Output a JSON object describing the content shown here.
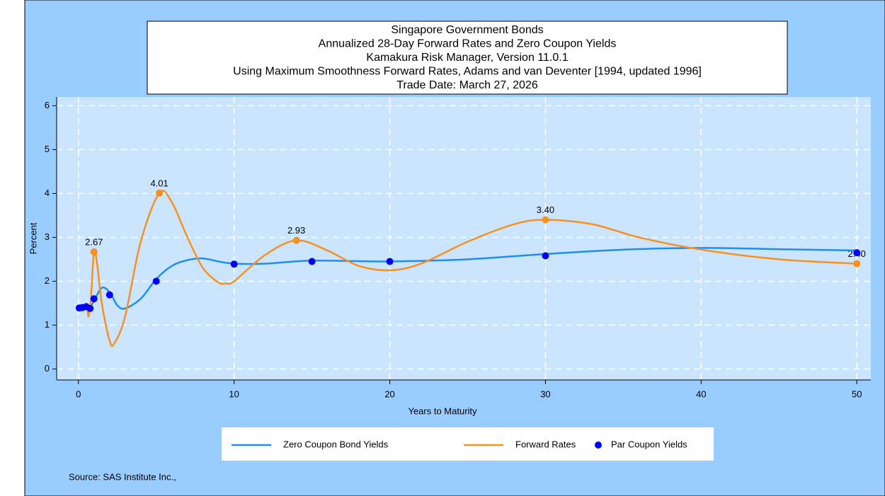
{
  "chart_data": {
    "type": "line",
    "title": [
      "Singapore Government Bonds",
      "Annualized 28-Day Forward Rates and Zero Coupon Yields",
      "Kamakura Risk Manager, Version 11.0.1",
      "Using Maximum Smoothness Forward Rates, Adams and van Deventer [1994, updated 1996]",
      "Trade Date: March 27, 2026"
    ],
    "x_label": "Years to Maturity",
    "y_label": "Percent",
    "source": "Source: SAS Institute Inc.,",
    "xlim": [
      -1.4,
      50.9
    ],
    "ylim": [
      -0.25,
      6.2
    ],
    "xticks": [
      0,
      10,
      20,
      30,
      40,
      50
    ],
    "yticks": [
      0,
      1,
      2,
      3,
      4,
      5,
      6
    ],
    "grid": true,
    "series": [
      {
        "name": "Zero Coupon Bond Yields",
        "type": "line",
        "color": "#1f8ef1",
        "x": [
          0,
          0.5,
          0.75,
          1,
          1.5,
          2,
          2.5,
          3,
          4,
          5,
          6,
          7,
          8,
          9,
          10,
          12,
          15,
          20,
          25,
          30,
          35,
          40,
          45,
          50
        ],
        "values": [
          1.38,
          1.4,
          1.42,
          1.55,
          1.85,
          1.75,
          1.45,
          1.38,
          1.6,
          2.05,
          2.35,
          2.48,
          2.52,
          2.45,
          2.4,
          2.4,
          2.47,
          2.45,
          2.5,
          2.62,
          2.72,
          2.76,
          2.73,
          2.7
        ]
      },
      {
        "name": "Forward Rates",
        "type": "line",
        "color": "#f7901e",
        "x": [
          0,
          0.5,
          0.65,
          0.8,
          1,
          1.2,
          1.5,
          2,
          2.3,
          3,
          4,
          5.2,
          6,
          7,
          8,
          9,
          9.5,
          10,
          12,
          14,
          16,
          18,
          20,
          22,
          25,
          28,
          30,
          33,
          36,
          40,
          45,
          50
        ],
        "values": [
          1.38,
          1.45,
          1.2,
          1.6,
          2.67,
          2.4,
          1.5,
          0.65,
          0.58,
          1.2,
          2.9,
          4.01,
          3.8,
          3.0,
          2.3,
          1.97,
          1.95,
          2.0,
          2.6,
          2.93,
          2.7,
          2.35,
          2.25,
          2.4,
          2.9,
          3.3,
          3.4,
          3.3,
          3.0,
          2.72,
          2.5,
          2.4
        ]
      },
      {
        "name": "Par Coupon Yields",
        "type": "scatter",
        "color": "#0000ff",
        "x": [
          0.05,
          0.25,
          0.5,
          0.75,
          1,
          2,
          5,
          10,
          15,
          20,
          30,
          50
        ],
        "values": [
          1.39,
          1.4,
          1.42,
          1.38,
          1.6,
          1.69,
          2.0,
          2.39,
          2.45,
          2.45,
          2.58,
          2.65
        ]
      }
    ],
    "annotations": {
      "color": "#f7901e",
      "x": [
        1,
        5.2,
        14,
        30,
        50
      ],
      "values": [
        2.67,
        4.01,
        2.93,
        3.4,
        2.4
      ],
      "value_labels": [
        "2.67",
        "4.01",
        "2.93",
        "3.40",
        "2.40"
      ]
    }
  }
}
